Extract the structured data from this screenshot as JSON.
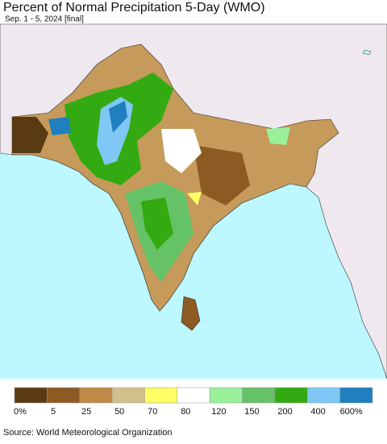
{
  "header": {
    "title": "Percent of Normal Precipitation 5-Day (WMO)",
    "subtitle": "Sep. 1 - 5, 2024 [final]"
  },
  "legend": {
    "colors": [
      "#5a3a12",
      "#8c5a22",
      "#c08a48",
      "#d2c08a",
      "#ffff66",
      "#ffffff",
      "#99f099",
      "#66c266",
      "#33aa11",
      "#7fc8f5",
      "#1f7fbf"
    ],
    "labels": [
      "0%",
      "5",
      "25",
      "50",
      "70",
      "80",
      "120",
      "150",
      "200",
      "400",
      "600%"
    ]
  },
  "footer": {
    "source": "Source: World Meteorological Organization"
  }
}
